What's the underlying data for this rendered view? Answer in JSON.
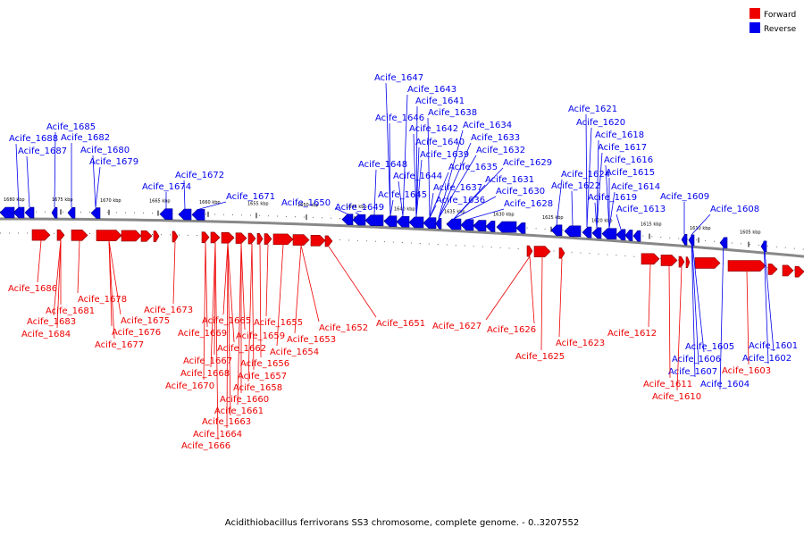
{
  "caption": "Acidithiobacillus ferrivorans SS3 chromosome, complete genome. - 0..3207552",
  "legend": [
    {
      "label": "Forward",
      "color": "#ee0000"
    },
    {
      "label": "Reverse",
      "color": "#0000ee"
    }
  ],
  "ticks": [
    "1680 kbp",
    "1675 kbp",
    "1670 kbp",
    "1665 kbp",
    "1660 kbp",
    "1655 kbp",
    "1650 kbp",
    "1645 kbp",
    "1640 kbp",
    "1635 kbp",
    "1630 kbp",
    "1625 kbp",
    "1620 kbp",
    "1615 kbp",
    "1610 kbp",
    "1605 kbp"
  ],
  "reverse_labels": [
    "Acife_1688",
    "Acife_1687",
    "Acife_1685",
    "Acife_1682",
    "Acife_1680",
    "Acife_1679",
    "Acife_1674",
    "Acife_1672",
    "Acife_1671",
    "Acife_1650",
    "Acife_1649",
    "Acife_1648",
    "Acife_1647",
    "Acife_1646",
    "Acife_1645",
    "Acife_1644",
    "Acife_1643",
    "Acife_1642",
    "Acife_1641",
    "Acife_1640",
    "Acife_1639",
    "Acife_1638",
    "Acife_1637",
    "Acife_1636",
    "Acife_1635",
    "Acife_1634",
    "Acife_1633",
    "Acife_1632",
    "Acife_1631",
    "Acife_1630",
    "Acife_1629",
    "Acife_1628",
    "Acife_1624",
    "Acife_1622",
    "Acife_1621",
    "Acife_1620",
    "Acife_1619",
    "Acife_1618",
    "Acife_1617",
    "Acife_1616",
    "Acife_1615",
    "Acife_1614",
    "Acife_1613",
    "Acife_1609",
    "Acife_1608",
    "Acife_1607",
    "Acife_1606",
    "Acife_1605",
    "Acife_1604",
    "Acife_1602",
    "Acife_1601"
  ],
  "forward_labels": [
    "Acife_1686",
    "Acife_1683",
    "Acife_1684",
    "Acife_1681",
    "Acife_1678",
    "Acife_1675",
    "Acife_1676",
    "Acife_1677",
    "Acife_1673",
    "Acife_1669",
    "Acife_1670",
    "Acife_1668",
    "Acife_1667",
    "Acife_1666",
    "Acife_1665",
    "Acife_1664",
    "Acife_1663",
    "Acife_1662",
    "Acife_1661",
    "Acife_1660",
    "Acife_1659",
    "Acife_1658",
    "Acife_1657",
    "Acife_1656",
    "Acife_1655",
    "Acife_1654",
    "Acife_1653",
    "Acife_1652",
    "Acife_1651",
    "Acife_1627",
    "Acife_1626",
    "Acife_1625",
    "Acife_1623",
    "Acife_1612",
    "Acife_1611",
    "Acife_1610",
    "Acife_1603"
  ]
}
